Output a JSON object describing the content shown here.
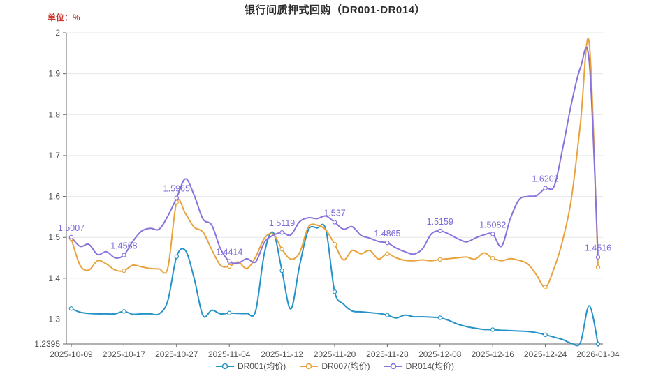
{
  "header": {
    "title": "银行间质押式回购（DR001-DR014）",
    "unit_label": "单位：%",
    "unit_color": "#c83a32",
    "title_color": "#2b2b2b"
  },
  "chart_data": {
    "type": "line",
    "title": "银行间质押式回购（DR001-DR014）",
    "unit": "%",
    "grid": true,
    "legend_position": "bottom",
    "x_tick_labels": [
      "2025-10-09",
      "2025-10-17",
      "2025-10-27",
      "2025-11-04",
      "2025-11-12",
      "2025-11-20",
      "2025-11-28",
      "2025-12-08",
      "2025-12-16",
      "2025-12-24",
      "2026-01-04"
    ],
    "tick_indices": [
      0,
      6,
      12,
      18,
      24,
      30,
      36,
      42,
      48,
      54,
      60
    ],
    "y_axis": {
      "min": 1.2395,
      "max": 2,
      "tick_labels": [
        "2",
        "1.9",
        "1.8",
        "1.7",
        "1.6",
        "1.5",
        "1.4",
        "1.3",
        "1.2395"
      ],
      "tick_values": [
        2,
        1.9,
        1.8,
        1.7,
        1.6,
        1.5,
        1.4,
        1.3,
        1.2395
      ]
    },
    "annotation_color": "#7b68d9",
    "axis_color": "#666666",
    "grid_color": "#e6e6e6",
    "label_color": "#4d4d4d",
    "series": [
      {
        "name": "DR001(均价)",
        "color": "#2593c8",
        "values": [
          1.326,
          1.317,
          1.314,
          1.313,
          1.313,
          1.313,
          1.319,
          1.312,
          1.313,
          1.313,
          1.313,
          1.345,
          1.453,
          1.468,
          1.4,
          1.309,
          1.322,
          1.313,
          1.315,
          1.314,
          1.314,
          1.32,
          1.462,
          1.512,
          1.4185,
          1.325,
          1.43,
          1.518,
          1.523,
          1.519,
          1.367,
          1.337,
          1.32,
          1.318,
          1.316,
          1.314,
          1.31,
          1.303,
          1.31,
          1.306,
          1.306,
          1.305,
          1.3035,
          1.297,
          1.288,
          1.282,
          1.278,
          1.275,
          1.2745,
          1.273,
          1.272,
          1.271,
          1.27,
          1.267,
          1.262,
          1.256,
          1.25,
          1.241,
          1.243,
          1.333,
          1.2395
        ]
      },
      {
        "name": "DR007(均价)",
        "color": "#e8a33e",
        "values": [
          1.497,
          1.432,
          1.42,
          1.443,
          1.435,
          1.42,
          1.4185,
          1.432,
          1.428,
          1.424,
          1.423,
          1.425,
          1.586,
          1.558,
          1.525,
          1.513,
          1.47,
          1.432,
          1.429,
          1.44,
          1.424,
          1.452,
          1.498,
          1.508,
          1.471,
          1.447,
          1.462,
          1.525,
          1.53,
          1.518,
          1.483,
          1.445,
          1.468,
          1.46,
          1.468,
          1.447,
          1.46,
          1.45,
          1.444,
          1.443,
          1.445,
          1.443,
          1.446,
          1.448,
          1.45,
          1.452,
          1.447,
          1.462,
          1.449,
          1.443,
          1.448,
          1.444,
          1.435,
          1.408,
          1.3782,
          1.425,
          1.495,
          1.6,
          1.78,
          1.975,
          1.427
        ]
      },
      {
        "name": "DR014(均价)",
        "color": "#8a72dc",
        "values": [
          1.5007,
          1.478,
          1.483,
          1.458,
          1.465,
          1.45,
          1.4568,
          1.49,
          1.515,
          1.522,
          1.52,
          1.552,
          1.5965,
          1.643,
          1.603,
          1.545,
          1.53,
          1.472,
          1.4414,
          1.437,
          1.448,
          1.44,
          1.488,
          1.505,
          1.5119,
          1.506,
          1.538,
          1.548,
          1.546,
          1.552,
          1.537,
          1.52,
          1.526,
          1.505,
          1.498,
          1.49,
          1.4865,
          1.474,
          1.465,
          1.459,
          1.472,
          1.508,
          1.5159,
          1.508,
          1.497,
          1.489,
          1.498,
          1.506,
          1.5082,
          1.478,
          1.545,
          1.592,
          1.6,
          1.602,
          1.6202,
          1.625,
          1.72,
          1.83,
          1.915,
          1.93,
          1.4516
        ],
        "annotations": [
          {
            "index": 0,
            "label": "1.5007"
          },
          {
            "index": 6,
            "label": "1.4568"
          },
          {
            "index": 12,
            "label": "1.5965"
          },
          {
            "index": 18,
            "label": "1.4414"
          },
          {
            "index": 24,
            "label": "1.5119"
          },
          {
            "index": 30,
            "label": "1.537"
          },
          {
            "index": 36,
            "label": "1.4865"
          },
          {
            "index": 42,
            "label": "1.5159"
          },
          {
            "index": 48,
            "label": "1.5082"
          },
          {
            "index": 54,
            "label": "1.6202"
          },
          {
            "index": 60,
            "label": "1.4516"
          }
        ]
      }
    ]
  }
}
